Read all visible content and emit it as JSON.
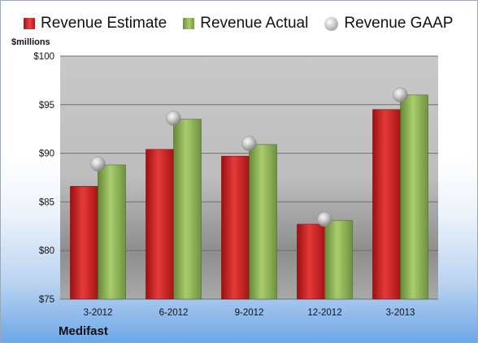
{
  "legend": {
    "estimate": "Revenue Estimate",
    "actual": "Revenue Actual",
    "gaap": "Revenue GAAP"
  },
  "ylabel": "$millions",
  "company": "Medifast",
  "colors": {
    "estimate": "#c0181c",
    "actual": "#8db354",
    "gaap": "#b8b8b8"
  },
  "chart_data": {
    "type": "bar",
    "categories": [
      "3-2012",
      "6-2012",
      "9-2012",
      "12-2012",
      "3-2013"
    ],
    "series": [
      {
        "name": "Revenue Estimate",
        "values": [
          86.6,
          90.4,
          89.7,
          82.7,
          94.5
        ]
      },
      {
        "name": "Revenue Actual",
        "values": [
          88.8,
          93.5,
          90.9,
          83.1,
          96.0
        ]
      },
      {
        "name": "Revenue GAAP",
        "values": [
          88.9,
          93.6,
          91.0,
          83.2,
          96.0
        ]
      }
    ],
    "ylabel": "$millions",
    "ylim": [
      75,
      100
    ],
    "yticks": [
      75,
      80,
      85,
      90,
      95,
      100
    ],
    "ytick_labels": [
      "$75",
      "$80",
      "$85",
      "$90",
      "$95",
      "$100"
    ],
    "grid": true,
    "legend": "top"
  }
}
